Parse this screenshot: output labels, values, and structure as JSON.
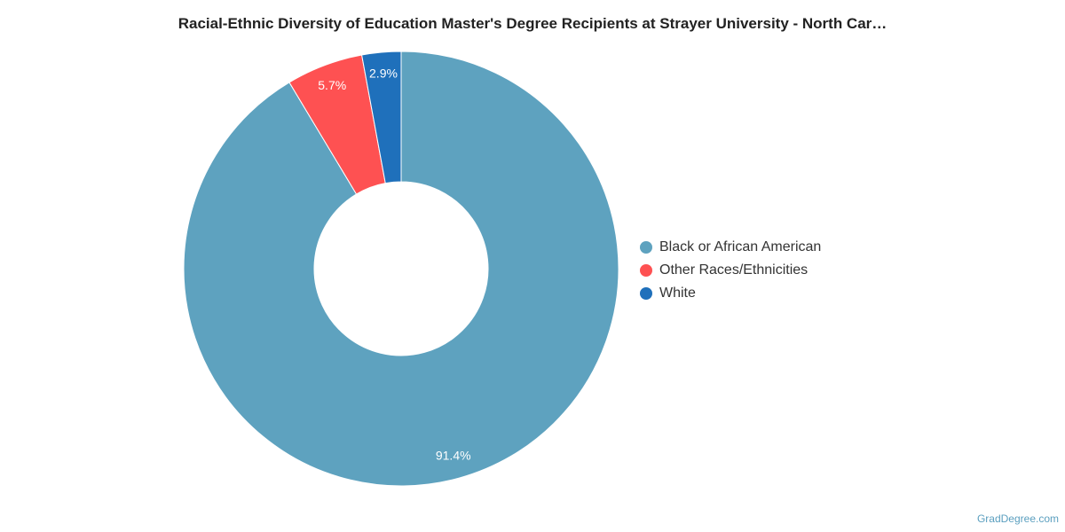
{
  "chart_data": {
    "type": "pie",
    "title": "Racial-Ethnic Diversity of Education Master's Degree Recipients at Strayer University - North Car…",
    "legend_position": "right",
    "slices": [
      {
        "label": "Black or African American",
        "value": 91.4,
        "display": "91.4%",
        "color": "#5ea2bf"
      },
      {
        "label": "Other Races/Ethnicities",
        "value": 5.7,
        "display": "5.7%",
        "color": "#fe5152"
      },
      {
        "label": "White",
        "value": 2.9,
        "display": "2.9%",
        "color": "#1f70bb"
      }
    ]
  },
  "watermark": "GradDegree.com"
}
